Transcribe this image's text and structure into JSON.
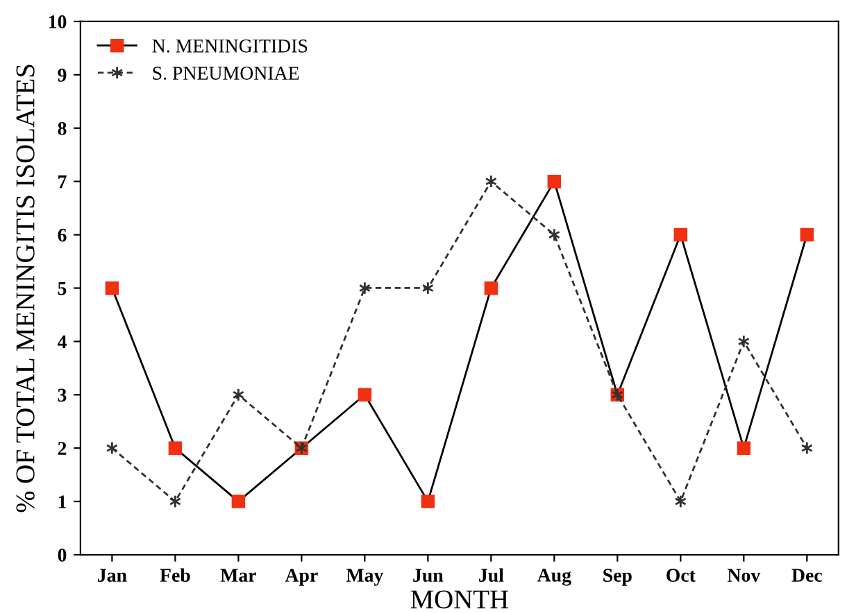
{
  "chart_data": {
    "type": "line",
    "xlabel": "MONTH",
    "ylabel": "% OF TOTAL MENINGITIS ISOLATES",
    "categories": [
      "Jan",
      "Feb",
      "Mar",
      "Apr",
      "May",
      "Jun",
      "Jul",
      "Aug",
      "Sep",
      "Oct",
      "Nov",
      "Dec"
    ],
    "series": [
      {
        "name": "N. MENINGITIDIS",
        "color": "#f03010",
        "marker": "square",
        "line_style": "solid",
        "values": [
          5,
          2,
          1,
          2,
          3,
          1,
          5,
          7,
          3,
          6,
          2,
          6
        ]
      },
      {
        "name": "S. PNEUMONIAE",
        "color": "#303030",
        "marker": "cross",
        "line_style": "dashed",
        "values": [
          2,
          1,
          3,
          2,
          5,
          5,
          7,
          6,
          3,
          1,
          4,
          2
        ]
      }
    ],
    "ylim": [
      0,
      10
    ],
    "yticks": [
      0,
      1,
      2,
      3,
      4,
      5,
      6,
      7,
      8,
      9,
      10
    ],
    "grid": false,
    "legend": "top left"
  }
}
